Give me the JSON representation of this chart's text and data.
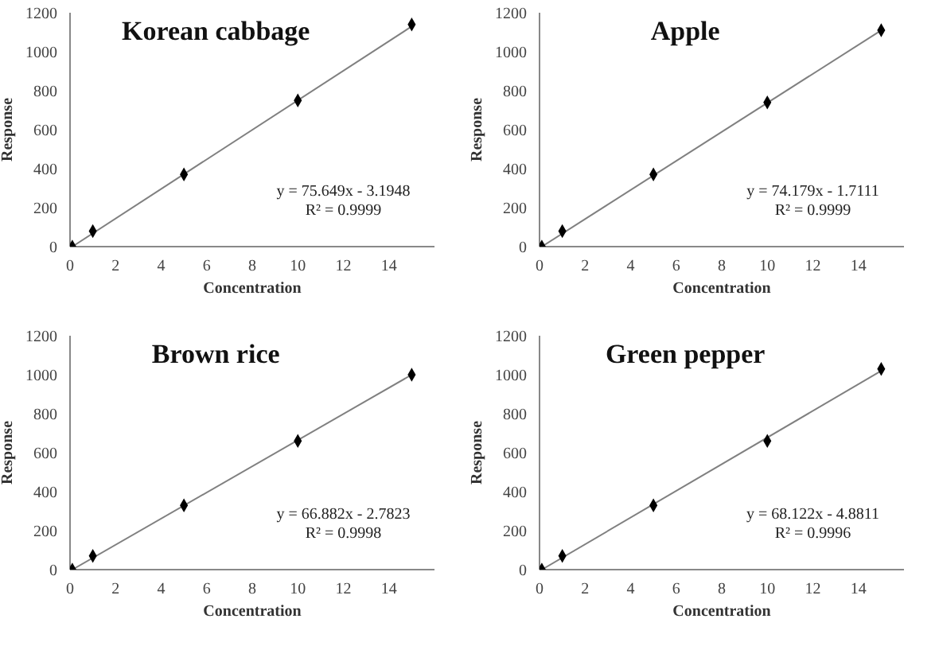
{
  "chart_data": [
    {
      "type": "scatter",
      "title": "Korean cabbage",
      "xlabel": "Concentration",
      "ylabel": "Response",
      "xlim": [
        0,
        16
      ],
      "xticks": [
        0,
        2,
        4,
        6,
        8,
        10,
        12,
        14
      ],
      "ylim": [
        0,
        1200
      ],
      "yticks": [
        0,
        200,
        400,
        600,
        800,
        1000,
        1200
      ],
      "grid": false,
      "legend": false,
      "annotations": [
        "y = 75.649x - 3.1948",
        "R² = 0.9999"
      ],
      "series": [
        {
          "color": "#000000",
          "marker": "diamond",
          "x": [
            0.1,
            1,
            5,
            10,
            15
          ],
          "values": [
            0,
            80,
            370,
            750,
            1140
          ]
        },
        {
          "type": "line",
          "color": "#808080",
          "marker": "none",
          "x": [
            0.1,
            15
          ],
          "values": [
            0,
            1130
          ]
        }
      ]
    },
    {
      "type": "scatter",
      "title": "Apple",
      "xlabel": "Concentration",
      "ylabel": "Response",
      "xlim": [
        0,
        16
      ],
      "xticks": [
        0,
        2,
        4,
        6,
        8,
        10,
        12,
        14
      ],
      "ylim": [
        0,
        1200
      ],
      "yticks": [
        0,
        200,
        400,
        600,
        800,
        1000,
        1200
      ],
      "grid": false,
      "legend": false,
      "annotations": [
        "y = 74.179x - 1.7111",
        "R² = 0.9999"
      ],
      "series": [
        {
          "color": "#000000",
          "marker": "diamond",
          "x": [
            0.1,
            1,
            5,
            10,
            15
          ],
          "values": [
            0,
            80,
            370,
            740,
            1110
          ]
        },
        {
          "type": "line",
          "color": "#808080",
          "marker": "none",
          "x": [
            0.1,
            15
          ],
          "values": [
            0,
            1110
          ]
        }
      ]
    },
    {
      "type": "scatter",
      "title": "Brown rice",
      "xlabel": "Concentration",
      "ylabel": "Response",
      "xlim": [
        0,
        16
      ],
      "xticks": [
        0,
        2,
        4,
        6,
        8,
        10,
        12,
        14
      ],
      "ylim": [
        0,
        1200
      ],
      "yticks": [
        0,
        200,
        400,
        600,
        800,
        1000,
        1200
      ],
      "grid": false,
      "legend": false,
      "annotations": [
        "y = 66.882x - 2.7823",
        "R² = 0.9998"
      ],
      "series": [
        {
          "color": "#000000",
          "marker": "diamond",
          "x": [
            0.1,
            1,
            5,
            10,
            15
          ],
          "values": [
            0,
            70,
            330,
            660,
            1000
          ]
        },
        {
          "type": "line",
          "color": "#808080",
          "marker": "none",
          "x": [
            0.1,
            15
          ],
          "values": [
            0,
            1000
          ]
        }
      ]
    },
    {
      "type": "scatter",
      "title": "Green pepper",
      "xlabel": "Concentration",
      "ylabel": "Response",
      "xlim": [
        0,
        16
      ],
      "xticks": [
        0,
        2,
        4,
        6,
        8,
        10,
        12,
        14
      ],
      "ylim": [
        0,
        1200
      ],
      "yticks": [
        0,
        200,
        400,
        600,
        800,
        1000,
        1200
      ],
      "grid": false,
      "legend": false,
      "annotations": [
        "y = 68.122x - 4.8811",
        "R² = 0.9996"
      ],
      "series": [
        {
          "color": "#000000",
          "marker": "diamond",
          "x": [
            0.1,
            1,
            5,
            10,
            15
          ],
          "values": [
            0,
            70,
            330,
            660,
            1030
          ]
        },
        {
          "type": "line",
          "color": "#808080",
          "marker": "none",
          "x": [
            0.1,
            15
          ],
          "values": [
            0,
            1020
          ]
        }
      ]
    }
  ]
}
